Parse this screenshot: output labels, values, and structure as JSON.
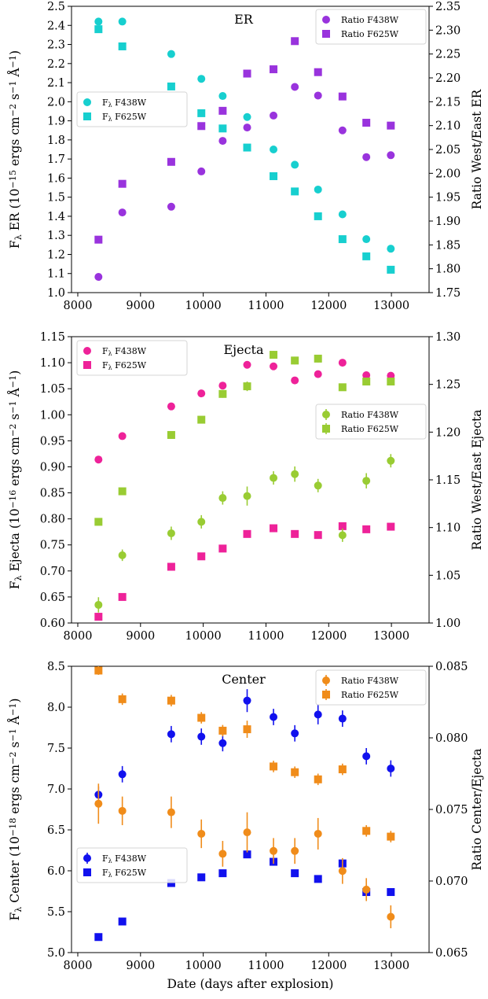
{
  "chart_data": [
    {
      "type": "scatter",
      "title": "ER",
      "xlabel": "",
      "ylabel": "F_λ ER (10^−15 ergs cm^−2 s^−1 Å^−1)",
      "y2label": "Ratio West/East ER",
      "xlim": [
        7900,
        13600
      ],
      "ylim": [
        1.0,
        2.5
      ],
      "y2lim": [
        1.75,
        2.35
      ],
      "xticks": [
        8000,
        9000,
        10000,
        11000,
        12000,
        13000
      ],
      "yticks": [
        1.0,
        1.1,
        1.2,
        1.3,
        1.4,
        1.5,
        1.6,
        1.7,
        1.8,
        1.9,
        2.0,
        2.1,
        2.2,
        2.3,
        2.4,
        2.5
      ],
      "y2ticks": [
        1.75,
        1.8,
        1.85,
        1.9,
        1.95,
        2.0,
        2.05,
        2.1,
        2.15,
        2.2,
        2.25,
        2.3,
        2.35
      ],
      "x": [
        8330,
        8710,
        9490,
        9970,
        10310,
        10700,
        11120,
        11460,
        11830,
        12220,
        12600,
        12990
      ],
      "series": [
        {
          "name": "F_λ F438W",
          "axis": "left",
          "marker": "circle",
          "color": "#17cfcf",
          "values": [
            2.42,
            2.42,
            2.25,
            2.12,
            2.03,
            1.92,
            1.75,
            1.67,
            1.54,
            1.41,
            1.28,
            1.23
          ]
        },
        {
          "name": "F_λ F625W",
          "axis": "left",
          "marker": "square",
          "color": "#17cfcf",
          "values": [
            2.38,
            2.29,
            2.08,
            1.94,
            1.86,
            1.76,
            1.61,
            1.53,
            1.4,
            1.28,
            1.19,
            1.12
          ]
        },
        {
          "name": "Ratio F438W",
          "axis": "right",
          "marker": "circle",
          "color": "#9933dd",
          "values": [
            1.783,
            1.918,
            1.93,
            2.004,
            2.068,
            2.096,
            2.121,
            2.181,
            2.163,
            2.09,
            2.034,
            2.038
          ]
        },
        {
          "name": "Ratio F625W",
          "axis": "right",
          "marker": "square",
          "color": "#9933dd",
          "values": [
            1.861,
            1.978,
            2.024,
            2.099,
            2.131,
            2.209,
            2.218,
            2.277,
            2.212,
            2.161,
            2.106,
            2.1
          ]
        }
      ],
      "legends": [
        {
          "position": "upper-right",
          "entries": [
            "Ratio F438W",
            "Ratio F625W"
          ]
        },
        {
          "position": "middle-left",
          "entries": [
            "F_λ F438W",
            "F_λ F625W"
          ]
        }
      ]
    },
    {
      "type": "scatter",
      "title": "Ejecta",
      "xlabel": "",
      "ylabel": "F_λ Ejecta (10^−16 ergs cm^−2 s^−1 Å^−1)",
      "y2label": "Ratio West/East Ejecta",
      "xlim": [
        7900,
        13600
      ],
      "ylim": [
        0.6,
        1.15
      ],
      "y2lim": [
        1.0,
        1.3
      ],
      "xticks": [
        8000,
        9000,
        10000,
        11000,
        12000,
        13000
      ],
      "yticks": [
        0.6,
        0.65,
        0.7,
        0.75,
        0.8,
        0.85,
        0.9,
        0.95,
        1.0,
        1.05,
        1.1,
        1.15
      ],
      "y2ticks": [
        1.0,
        1.05,
        1.1,
        1.15,
        1.2,
        1.25,
        1.3
      ],
      "x": [
        8330,
        8710,
        9490,
        9970,
        10310,
        10700,
        11120,
        11460,
        11830,
        12220,
        12600,
        12990
      ],
      "series": [
        {
          "name": "F_λ F438W",
          "axis": "left",
          "marker": "circle",
          "color": "#ee2299",
          "values": [
            0.914,
            0.959,
            1.016,
            1.041,
            1.056,
            1.096,
            1.093,
            1.066,
            1.078,
            1.1,
            1.076,
            1.075
          ]
        },
        {
          "name": "F_λ F625W",
          "axis": "left",
          "marker": "square",
          "color": "#ee2299",
          "values": [
            0.612,
            0.65,
            0.708,
            0.728,
            0.743,
            0.771,
            0.782,
            0.771,
            0.769,
            0.786,
            0.78,
            0.785
          ]
        },
        {
          "name": "Ratio F438W",
          "axis": "right",
          "marker": "circle",
          "color": "#99cc33",
          "values": [
            1.019,
            1.071,
            1.094,
            1.106,
            1.131,
            1.133,
            1.152,
            1.156,
            1.144,
            1.092,
            1.149,
            1.17
          ],
          "yerr": [
            0.008,
            0.006,
            0.007,
            0.007,
            0.007,
            0.01,
            0.007,
            0.008,
            0.007,
            0.007,
            0.008,
            0.007
          ]
        },
        {
          "name": "Ratio F625W",
          "axis": "right",
          "marker": "square",
          "color": "#99cc33",
          "values": [
            1.106,
            1.138,
            1.197,
            1.213,
            1.24,
            1.248,
            1.281,
            1.275,
            1.277,
            1.247,
            1.253,
            1.253
          ],
          "yerr": [
            0.003,
            0.003,
            0.003,
            0.003,
            0.004,
            0.005,
            0.004,
            0.004,
            0.004,
            0.003,
            0.004,
            0.004
          ]
        }
      ],
      "legends": [
        {
          "position": "upper-left",
          "entries": [
            "F_λ F438W",
            "F_λ F625W"
          ]
        },
        {
          "position": "center-right",
          "entries": [
            "Ratio F438W",
            "Ratio F625W"
          ]
        }
      ]
    },
    {
      "type": "scatter",
      "title": "Center",
      "xlabel": "Date (days after explosion)",
      "ylabel": "F_λ Center (10^−18 ergs cm^−2 s^−1 Å^−1)",
      "y2label": "Ratio Center/Ejecta",
      "xlim": [
        7900,
        13600
      ],
      "ylim": [
        5.0,
        8.5
      ],
      "y2lim": [
        0.065,
        0.085
      ],
      "xticks": [
        8000,
        9000,
        10000,
        11000,
        12000,
        13000
      ],
      "yticks": [
        5.0,
        5.5,
        6.0,
        6.5,
        7.0,
        7.5,
        8.0,
        8.5
      ],
      "y2ticks": [
        0.065,
        0.07,
        0.075,
        0.08,
        0.085
      ],
      "x": [
        8330,
        8710,
        9490,
        9970,
        10310,
        10700,
        11120,
        11460,
        11830,
        12220,
        12600,
        12990
      ],
      "series": [
        {
          "name": "F_λ F438W",
          "axis": "left",
          "marker": "circle",
          "color": "#1111ee",
          "values": [
            6.93,
            7.18,
            7.67,
            7.64,
            7.56,
            8.08,
            7.88,
            7.68,
            7.91,
            7.86,
            7.4,
            7.25
          ],
          "yerr": [
            0.1,
            0.1,
            0.1,
            0.1,
            0.1,
            0.14,
            0.1,
            0.1,
            0.12,
            0.1,
            0.1,
            0.1
          ]
        },
        {
          "name": "F_λ F625W",
          "axis": "left",
          "marker": "square",
          "color": "#1111ee",
          "values": [
            5.19,
            5.38,
            5.85,
            5.92,
            5.97,
            6.2,
            6.11,
            5.97,
            5.9,
            6.09,
            5.74,
            5.74
          ]
        },
        {
          "name": "Ratio F438W",
          "axis": "right",
          "marker": "circle",
          "color": "#f08c1a",
          "values": [
            0.0754,
            0.0749,
            0.0748,
            0.0733,
            0.0719,
            0.0734,
            0.0721,
            0.0721,
            0.0733,
            0.0707,
            0.0694,
            0.0675
          ],
          "yerr": [
            0.0014,
            0.001,
            0.0011,
            0.001,
            0.0009,
            0.0014,
            0.0009,
            0.0009,
            0.0011,
            0.0009,
            0.0008,
            0.0008
          ]
        },
        {
          "name": "Ratio F625W",
          "axis": "right",
          "marker": "square",
          "color": "#f08c1a",
          "values": [
            0.0847,
            0.0827,
            0.0826,
            0.0814,
            0.0805,
            0.0806,
            0.078,
            0.0776,
            0.0771,
            0.0778,
            0.0735,
            0.0731
          ],
          "yerr": [
            0.0003,
            0.0004,
            0.0004,
            0.0004,
            0.0004,
            0.0006,
            0.0004,
            0.0004,
            0.0004,
            0.0004,
            0.0004,
            0.0004
          ]
        }
      ],
      "legends": [
        {
          "position": "upper-right",
          "entries": [
            "Ratio F438W",
            "Ratio F625W"
          ]
        },
        {
          "position": "lower-left",
          "entries": [
            "F_λ F438W",
            "F_λ F625W"
          ]
        }
      ]
    }
  ]
}
